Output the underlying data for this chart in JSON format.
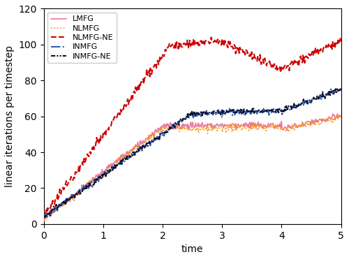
{
  "title": "",
  "xlabel": "time",
  "ylabel": "linear iterations per timestep",
  "xlim": [
    0,
    5
  ],
  "ylim": [
    0,
    120
  ],
  "xticks": [
    0,
    1,
    2,
    3,
    4,
    5
  ],
  "yticks": [
    0,
    20,
    40,
    60,
    80,
    100,
    120
  ],
  "lines": {
    "LMFG": {
      "color": "#e87ca0",
      "lw": 1.2,
      "ls": "-",
      "zorder": 3
    },
    "NLMFG": {
      "color": "#ff8c00",
      "lw": 1.2,
      "ls": ":",
      "zorder": 4
    },
    "NLMFG-NE": {
      "color": "#cc0000",
      "lw": 1.5,
      "ls": "--",
      "zorder": 5
    },
    "INMFG": {
      "color": "#3060b0",
      "lw": 1.5,
      "ls": "-.",
      "zorder": 6
    },
    "INMFG-NE": {
      "color": "#101030",
      "lw": 1.5,
      "ls": "-.",
      "zorder": 7
    }
  },
  "legend_loc": "upper left",
  "figsize": [
    5.0,
    3.71
  ],
  "dpi": 100
}
